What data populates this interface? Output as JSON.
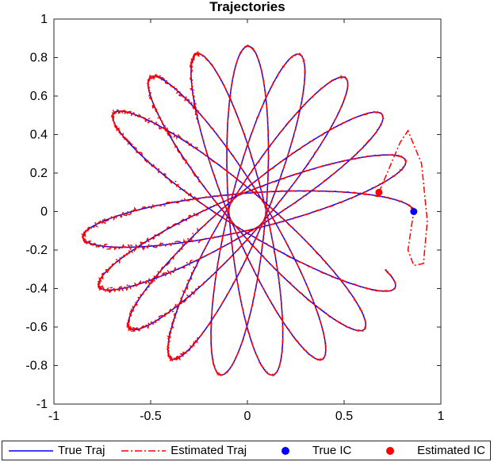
{
  "chart_data": {
    "type": "line",
    "title": "Trajectories",
    "xlabel": "",
    "ylabel": "",
    "xlim": [
      -1,
      1
    ],
    "ylim": [
      -1,
      1
    ],
    "xticks": [
      -1,
      -0.5,
      0,
      0.5,
      1
    ],
    "yticks": [
      -1,
      -0.8,
      -0.6,
      -0.4,
      -0.2,
      0,
      0.2,
      0.4,
      0.6,
      0.8,
      1
    ],
    "xtick_labels": [
      "-1",
      "-0.5",
      "0",
      "0.5",
      "1"
    ],
    "ytick_labels": [
      "-1",
      "-0.8",
      "-0.6",
      "-0.4",
      "-0.2",
      "0",
      "0.2",
      "0.4",
      "0.6",
      "0.8",
      "1"
    ],
    "grid": false,
    "legend_position": "bottom",
    "series": [
      {
        "name": "True Traj",
        "style": "solid-line",
        "color": "#0000ff",
        "description_values": {
          "outer_radius": 0.92,
          "inner_radius": 0.1,
          "loops": 9
        }
      },
      {
        "name": "Estimated Traj",
        "style": "dash-dot-line",
        "color": "#ff0000"
      },
      {
        "name": "True IC",
        "style": "marker",
        "color": "#0000ff",
        "point": [
          0.86,
          0
        ]
      },
      {
        "name": "Estimated IC",
        "style": "marker",
        "color": "#ff0000",
        "point": [
          0.68,
          0.1
        ]
      }
    ],
    "estimated_transient": {
      "points": [
        [
          0.68,
          0.1
        ],
        [
          0.79,
          0.36
        ],
        [
          0.83,
          0.42
        ],
        [
          0.9,
          0.25
        ],
        [
          0.93,
          -0.05
        ],
        [
          0.91,
          -0.27
        ],
        [
          0.86,
          -0.28
        ],
        [
          0.83,
          -0.2
        ]
      ]
    }
  }
}
